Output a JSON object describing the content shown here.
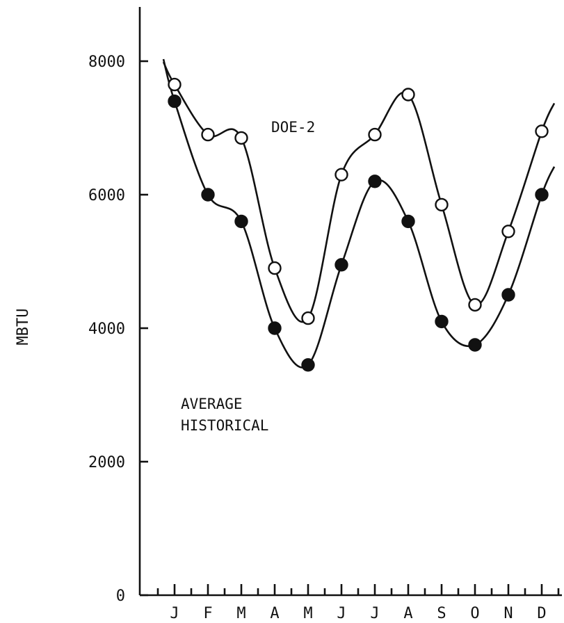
{
  "chart_data": {
    "type": "line",
    "title": "",
    "xlabel": "",
    "ylabel": "MBTU",
    "ylim": [
      0,
      8000
    ],
    "yticks": [
      0,
      2000,
      4000,
      6000,
      8000
    ],
    "ytick_labels": [
      "0",
      "2000",
      "4000",
      "6000",
      "8000"
    ],
    "categories": [
      "J",
      "F",
      "M",
      "A",
      "M",
      "J",
      "J",
      "A",
      "S",
      "O",
      "N",
      "D"
    ],
    "grid": false,
    "series": [
      {
        "name": "DOE-2",
        "marker": "open-circle",
        "color": "#111111",
        "values": [
          7650,
          6900,
          6850,
          4900,
          4150,
          6300,
          6900,
          7500,
          5850,
          4350,
          5450,
          6950
        ]
      },
      {
        "name": "AVERAGE HISTORICAL",
        "marker": "filled-circle",
        "color": "#111111",
        "values": [
          7400,
          6000,
          5600,
          4000,
          3450,
          4950,
          6200,
          5600,
          4100,
          3750,
          4500,
          6000
        ]
      }
    ]
  }
}
